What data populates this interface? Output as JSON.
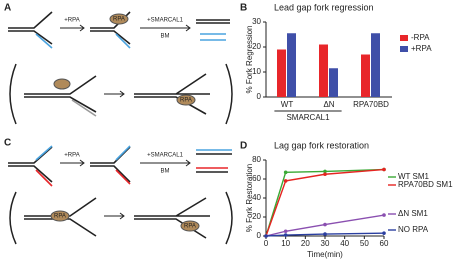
{
  "diagrams": {
    "A": {
      "letter": "A",
      "step1": "+RPA",
      "step2": "+SMARCAL1",
      "step3": "BM",
      "protein": "RPA",
      "protein2": "RPA"
    },
    "C": {
      "letter": "C",
      "step1": "+RPA",
      "step2": "+SMARCAL1",
      "step3": "BM",
      "protein": "RPA",
      "protein2": "RPA"
    }
  },
  "chart_data": [
    {
      "type": "bar",
      "panel_label": "B",
      "title": "Lead gap fork regression",
      "y_label": "% Fork Regression",
      "categories": [
        "WT",
        "ΔN",
        "RPA70BD"
      ],
      "group_label": "SMARCAL1",
      "series": [
        {
          "name": "-RPA",
          "color": "#e8262a",
          "values": [
            19,
            21,
            17
          ]
        },
        {
          "name": "+RPA",
          "color": "#3f4fa8",
          "values": [
            25.5,
            11.5,
            25.5
          ]
        }
      ],
      "ylim": [
        0,
        30
      ],
      "yticks": [
        0,
        10,
        20,
        30
      ]
    },
    {
      "type": "line",
      "panel_label": "D",
      "title": "Lag gap fork restoration",
      "y_label": "% Fork Restoration",
      "x_label": "Time(min)",
      "x": [
        0,
        10,
        30,
        60
      ],
      "series": [
        {
          "name": "WT SM1",
          "color": "#3aa935",
          "values": [
            0,
            67,
            68,
            70
          ]
        },
        {
          "name": "RPA70BD SM1",
          "color": "#e52421",
          "values": [
            0,
            58,
            65,
            70
          ]
        },
        {
          "name": "ΔN SM1",
          "color": "#8a4fb0",
          "values": [
            0,
            5,
            12,
            22
          ]
        },
        {
          "name": "NO RPA",
          "color": "#2b3fa0",
          "values": [
            0,
            1,
            2,
            3
          ]
        }
      ],
      "xlim": [
        0,
        60
      ],
      "xticks": [
        0,
        10,
        20,
        30,
        40,
        50,
        60
      ],
      "ylim": [
        0,
        80
      ],
      "yticks": [
        0,
        20,
        40,
        60,
        80
      ]
    }
  ]
}
